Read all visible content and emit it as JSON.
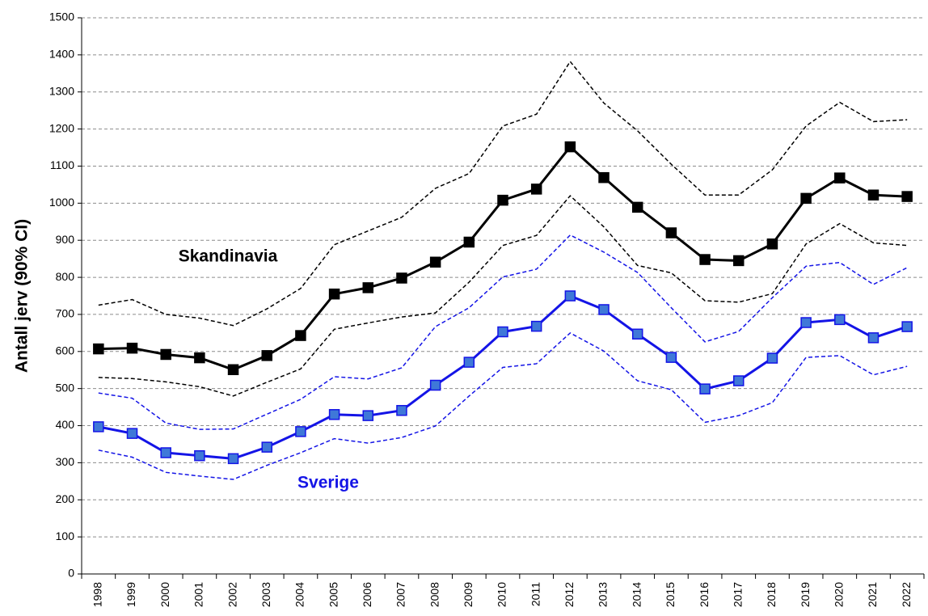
{
  "chart_data": {
    "type": "line",
    "y_label": "Antall jerv (90% CI)",
    "categories": [
      "1998",
      "1999",
      "2000",
      "2001",
      "2002",
      "2003",
      "2004",
      "2005",
      "2006",
      "2007",
      "2008",
      "2009",
      "2010",
      "2011",
      "2012",
      "2013",
      "2014",
      "2015",
      "2016",
      "2017",
      "2018",
      "2019",
      "2020",
      "2021",
      "2022"
    ],
    "series": [
      {
        "name": "Skandinavia",
        "color": "#000000",
        "marker_fill": "#000000",
        "values": [
          607,
          609,
          592,
          583,
          551,
          589,
          643,
          755,
          772,
          798,
          841,
          895,
          1008,
          1038,
          1152,
          1069,
          989,
          920,
          848,
          845,
          890,
          1013,
          1068,
          1022,
          1018
        ],
        "ci_high": [
          725,
          740,
          700,
          690,
          670,
          715,
          770,
          888,
          925,
          962,
          1040,
          1080,
          1208,
          1240,
          1382,
          1270,
          1195,
          1105,
          1022,
          1022,
          1090,
          1208,
          1272,
          1220,
          1225
        ],
        "ci_low": [
          530,
          527,
          518,
          505,
          480,
          517,
          553,
          660,
          677,
          693,
          704,
          787,
          886,
          913,
          1020,
          936,
          832,
          812,
          737,
          733,
          756,
          890,
          945,
          893,
          886
        ]
      },
      {
        "name": "Sverige",
        "color": "#1414e6",
        "marker_fill": "#3f78d8",
        "values": [
          397,
          379,
          327,
          319,
          311,
          342,
          384,
          430,
          427,
          441,
          509,
          571,
          653,
          668,
          750,
          713,
          647,
          584,
          499,
          521,
          582,
          678,
          686,
          637,
          667
        ],
        "ci_high": [
          488,
          474,
          407,
          390,
          391,
          431,
          471,
          532,
          526,
          556,
          667,
          718,
          801,
          822,
          914,
          868,
          813,
          718,
          626,
          654,
          745,
          830,
          840,
          781,
          826
        ],
        "ci_low": [
          334,
          315,
          274,
          264,
          255,
          293,
          327,
          365,
          353,
          368,
          399,
          480,
          557,
          567,
          650,
          601,
          521,
          497,
          409,
          427,
          462,
          584,
          589,
          537,
          560
        ]
      }
    ],
    "ylim": [
      0,
      1500
    ],
    "yticks": [
      0,
      100,
      200,
      300,
      400,
      500,
      600,
      700,
      800,
      900,
      1000,
      1100,
      1200,
      1300,
      1400,
      1500
    ],
    "grid": true
  }
}
